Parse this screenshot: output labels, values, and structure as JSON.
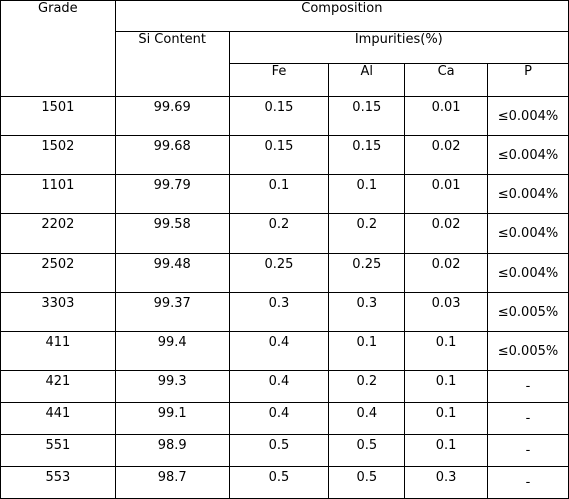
{
  "headers": {
    "grade": "Grade",
    "composition": "Composition",
    "si_content": "Si Content",
    "impurities": "Impurities(%)",
    "fe": "Fe",
    "al": "Al",
    "ca": "Ca",
    "p": "P"
  },
  "rows": [
    {
      "grade": "1501",
      "si": "99.69",
      "fe": "0.15",
      "al": "0.15",
      "ca": "0.01",
      "p": "≤0.004%"
    },
    {
      "grade": "1502",
      "si": "99.68",
      "fe": "0.15",
      "al": "0.15",
      "ca": "0.02",
      "p": "≤0.004%"
    },
    {
      "grade": "1101",
      "si": "99.79",
      "fe": "0.1",
      "al": "0.1",
      "ca": "0.01",
      "p": "≤0.004%"
    },
    {
      "grade": "2202",
      "si": "99.58",
      "fe": "0.2",
      "al": "0.2",
      "ca": "0.02",
      "p": "≤0.004%"
    },
    {
      "grade": "2502",
      "si": "99.48",
      "fe": "0.25",
      "al": "0.25",
      "ca": "0.02",
      "p": "≤0.004%"
    },
    {
      "grade": "3303",
      "si": "99.37",
      "fe": "0.3",
      "al": "0.3",
      "ca": "0.03",
      "p": "≤0.005%"
    },
    {
      "grade": "411",
      "si": "99.4",
      "fe": "0.4",
      "al": "0.1",
      "ca": "0.1",
      "p": "≤0.005%"
    },
    {
      "grade": "421",
      "si": "99.3",
      "fe": "0.4",
      "al": "0.2",
      "ca": "0.1",
      "p": "-"
    },
    {
      "grade": "441",
      "si": "99.1",
      "fe": "0.4",
      "al": "0.4",
      "ca": "0.1",
      "p": "-"
    },
    {
      "grade": "551",
      "si": "98.9",
      "fe": "0.5",
      "al": "0.5",
      "ca": "0.1",
      "p": "-"
    },
    {
      "grade": "553",
      "si": "98.7",
      "fe": "0.5",
      "al": "0.5",
      "ca": "0.3",
      "p": "-"
    }
  ]
}
